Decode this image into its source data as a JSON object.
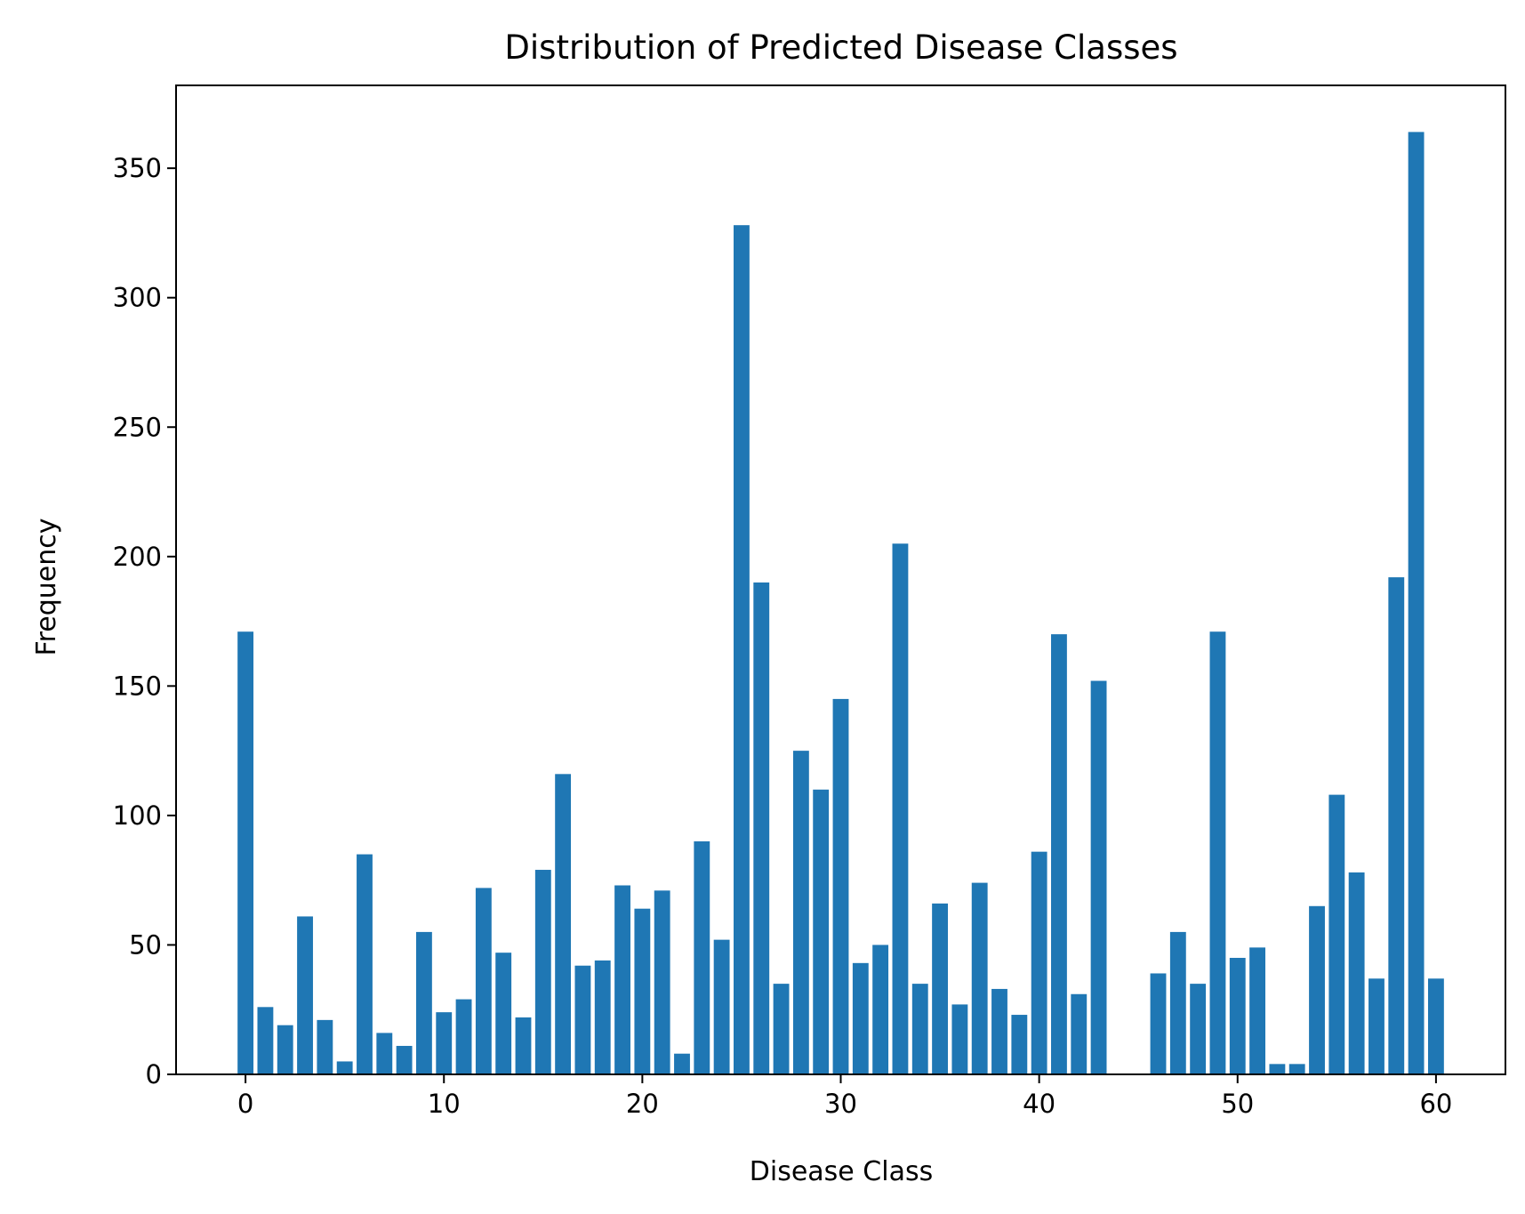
{
  "chart_data": {
    "type": "bar",
    "title": "Distribution of Predicted Disease Classes",
    "xlabel": "Disease Class",
    "ylabel": "Frequency",
    "x": [
      0,
      1,
      2,
      3,
      4,
      5,
      6,
      7,
      8,
      9,
      10,
      11,
      12,
      13,
      14,
      15,
      16,
      17,
      18,
      19,
      20,
      21,
      22,
      23,
      24,
      25,
      26,
      27,
      28,
      29,
      30,
      31,
      32,
      33,
      34,
      35,
      36,
      37,
      38,
      39,
      40,
      41,
      42,
      43,
      46,
      47,
      48,
      49,
      50,
      51,
      52,
      53,
      54,
      55,
      56,
      57,
      58,
      59,
      60
    ],
    "values": [
      171,
      26,
      19,
      61,
      21,
      5,
      85,
      16,
      11,
      55,
      24,
      29,
      72,
      47,
      22,
      79,
      116,
      42,
      44,
      73,
      64,
      71,
      8,
      90,
      52,
      328,
      190,
      35,
      125,
      110,
      145,
      43,
      50,
      205,
      35,
      66,
      27,
      74,
      33,
      23,
      86,
      170,
      31,
      152,
      39,
      55,
      35,
      171,
      45,
      49,
      4,
      4,
      65,
      108,
      78,
      37,
      192,
      364,
      37
    ],
    "xlim": [
      -3.5,
      63.5
    ],
    "ylim": [
      0,
      382
    ],
    "xticks": [
      0,
      10,
      20,
      30,
      40,
      50,
      60
    ],
    "yticks": [
      0,
      50,
      100,
      150,
      200,
      250,
      300,
      350
    ],
    "bar_color": "#1f77b4",
    "grid": false,
    "legend": "none"
  }
}
